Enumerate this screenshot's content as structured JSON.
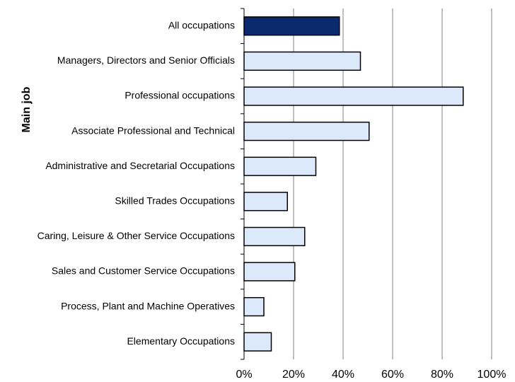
{
  "chart_data": {
    "type": "barh",
    "ylabel": "Main job",
    "categories": [
      "All occupations",
      "Managers, Directors and Senior Officials",
      "Professional occupations",
      "Associate Professional and Technical",
      "Administrative and Secretarial Occupations",
      "Skilled Trades Occupations",
      "Caring, Leisure & Other Service Occupations",
      "Sales and Customer Service Occupations",
      "Process, Plant and Machine Operatives",
      "Elementary Occupations"
    ],
    "values": [
      38.5,
      47,
      88.5,
      50.5,
      29,
      17.5,
      24.5,
      20.5,
      8,
      11
    ],
    "colors": [
      "#0b2a6e",
      "#dce9fb",
      "#dce9fb",
      "#dce9fb",
      "#dce9fb",
      "#dce9fb",
      "#dce9fb",
      "#dce9fb",
      "#dce9fb",
      "#dce9fb"
    ],
    "xlim": [
      0,
      100
    ],
    "xticks": [
      {
        "value": 0,
        "label": "0%"
      },
      {
        "value": 20,
        "label": "20%"
      },
      {
        "value": 40,
        "label": "40%"
      },
      {
        "value": 60,
        "label": "60%"
      },
      {
        "value": 80,
        "label": "80%"
      },
      {
        "value": 100,
        "label": "100%"
      }
    ],
    "grid": true
  }
}
